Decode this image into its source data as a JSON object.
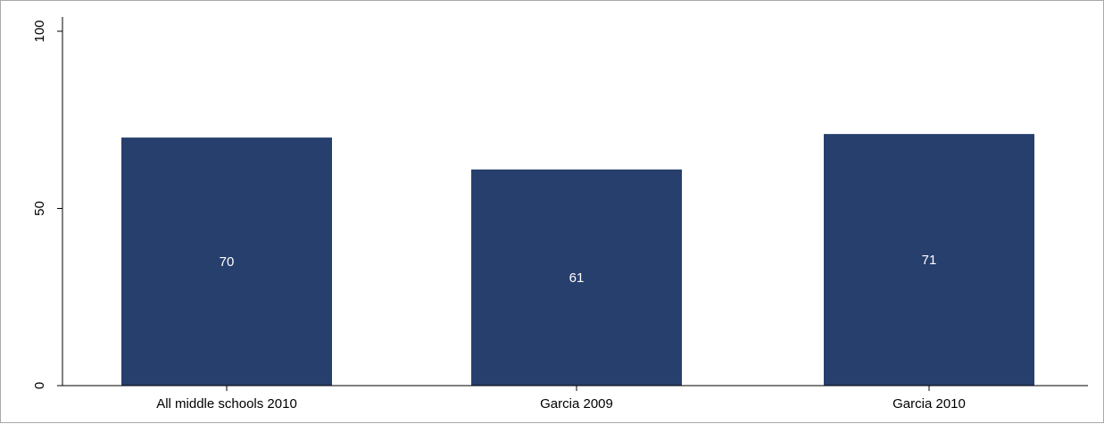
{
  "chart_data": {
    "type": "bar",
    "categories": [
      "All middle schools 2010",
      "Garcia 2009",
      "Garcia 2010"
    ],
    "values": [
      70,
      61,
      71
    ],
    "data_labels": [
      "70",
      "61",
      "71"
    ],
    "title": "",
    "xlabel": "",
    "ylabel": "",
    "ylim": [
      0,
      100
    ],
    "y_ticks": [
      0,
      50,
      100
    ],
    "y_tick_labels": [
      "0",
      "50",
      "100"
    ],
    "grid": false,
    "legend": "none",
    "bar_color": "#273f6d",
    "label_color": "#ffffff"
  }
}
